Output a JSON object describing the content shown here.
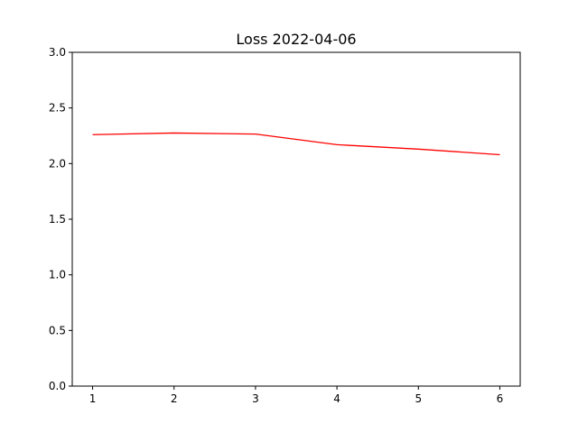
{
  "chart_data": {
    "type": "line",
    "title": "Loss 2022-04-06",
    "xlabel": "",
    "ylabel": "",
    "x": [
      1,
      2,
      3,
      4,
      5,
      6
    ],
    "xticks": [
      "1",
      "2",
      "3",
      "4",
      "5",
      "6"
    ],
    "yticks": [
      "0.0",
      "0.5",
      "1.0",
      "1.5",
      "2.0",
      "2.5",
      "3.0"
    ],
    "xlim": [
      0.75,
      6.25
    ],
    "ylim": [
      0,
      3.0
    ],
    "grid": false,
    "series": [
      {
        "color": "#ff0000",
        "values": [
          2.26,
          2.275,
          2.265,
          2.17,
          2.13,
          2.08
        ]
      }
    ]
  }
}
